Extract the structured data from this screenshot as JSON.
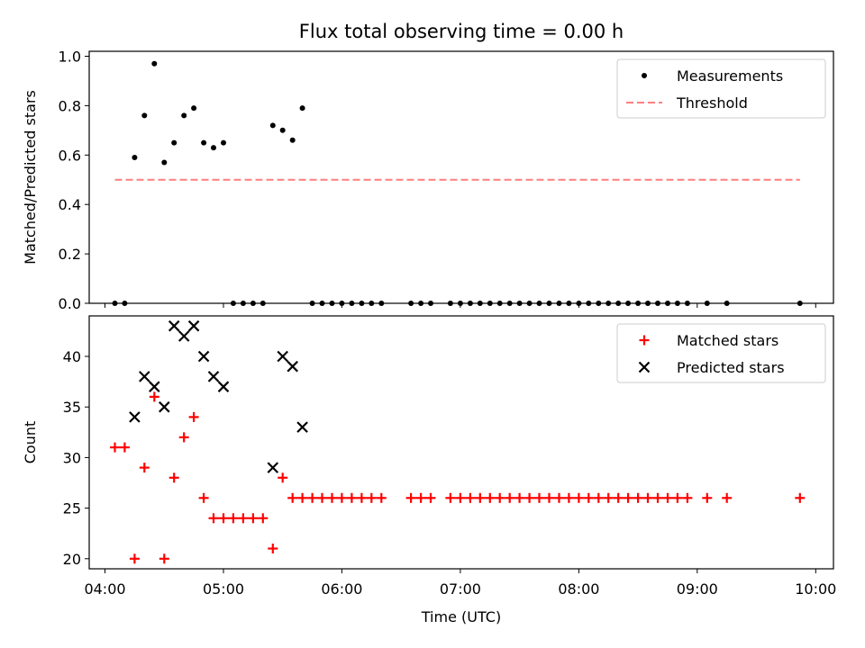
{
  "chart_data": [
    {
      "type": "scatter",
      "title": "Flux total observing time = 0.00 h",
      "xlabel": "",
      "ylabel": "Matched/Predicted stars",
      "xlim": [
        "03:52",
        "10:09"
      ],
      "ylim": [
        0.0,
        1.02
      ],
      "yticks": [
        0.0,
        0.2,
        0.4,
        0.6,
        0.8,
        1.0
      ],
      "ytick_labels": [
        "0.0",
        "0.2",
        "0.4",
        "0.6",
        "0.8",
        "1.0"
      ],
      "xticks": [
        "04:00",
        "05:00",
        "06:00",
        "07:00",
        "08:00",
        "09:00",
        "10:00"
      ],
      "legend": {
        "position": "top-right",
        "entries": [
          "Measurements",
          "Threshold"
        ]
      },
      "series": [
        {
          "name": "Measurements",
          "marker": "dot",
          "color": "#000000",
          "points": [
            [
              "04:05",
              0.0
            ],
            [
              "04:10",
              0.0
            ],
            [
              "04:15",
              0.59
            ],
            [
              "04:20",
              0.76
            ],
            [
              "04:25",
              0.97
            ],
            [
              "04:30",
              0.57
            ],
            [
              "04:35",
              0.65
            ],
            [
              "04:40",
              0.76
            ],
            [
              "04:45",
              0.79
            ],
            [
              "04:50",
              0.65
            ],
            [
              "04:55",
              0.63
            ],
            [
              "05:00",
              0.65
            ],
            [
              "05:05",
              0.0
            ],
            [
              "05:10",
              0.0
            ],
            [
              "05:15",
              0.0
            ],
            [
              "05:20",
              0.0
            ],
            [
              "05:25",
              0.72
            ],
            [
              "05:30",
              0.7
            ],
            [
              "05:35",
              0.66
            ],
            [
              "05:40",
              0.79
            ],
            [
              "05:45",
              0.0
            ],
            [
              "05:50",
              0.0
            ],
            [
              "05:55",
              0.0
            ],
            [
              "06:00",
              0.0
            ],
            [
              "06:05",
              0.0
            ],
            [
              "06:10",
              0.0
            ],
            [
              "06:15",
              0.0
            ],
            [
              "06:20",
              0.0
            ],
            [
              "06:35",
              0.0
            ],
            [
              "06:40",
              0.0
            ],
            [
              "06:45",
              0.0
            ],
            [
              "06:55",
              0.0
            ],
            [
              "07:00",
              0.0
            ],
            [
              "07:05",
              0.0
            ],
            [
              "07:10",
              0.0
            ],
            [
              "07:15",
              0.0
            ],
            [
              "07:20",
              0.0
            ],
            [
              "07:25",
              0.0
            ],
            [
              "07:30",
              0.0
            ],
            [
              "07:35",
              0.0
            ],
            [
              "07:40",
              0.0
            ],
            [
              "07:45",
              0.0
            ],
            [
              "07:50",
              0.0
            ],
            [
              "07:55",
              0.0
            ],
            [
              "08:00",
              0.0
            ],
            [
              "08:05",
              0.0
            ],
            [
              "08:10",
              0.0
            ],
            [
              "08:15",
              0.0
            ],
            [
              "08:20",
              0.0
            ],
            [
              "08:25",
              0.0
            ],
            [
              "08:30",
              0.0
            ],
            [
              "08:35",
              0.0
            ],
            [
              "08:40",
              0.0
            ],
            [
              "08:45",
              0.0
            ],
            [
              "08:50",
              0.0
            ],
            [
              "08:55",
              0.0
            ],
            [
              "09:05",
              0.0
            ],
            [
              "09:15",
              0.0
            ],
            [
              "09:52",
              0.0
            ]
          ]
        },
        {
          "name": "Threshold",
          "marker": "dashed-line",
          "color": "#ff7f7f",
          "points": [
            [
              "04:05",
              0.5
            ],
            [
              "09:52",
              0.5
            ]
          ]
        }
      ]
    },
    {
      "type": "scatter",
      "title": "",
      "xlabel": "Time (UTC)",
      "ylabel": "Count",
      "xlim": [
        "03:52",
        "10:09"
      ],
      "ylim": [
        19.0,
        44.0
      ],
      "yticks": [
        20,
        25,
        30,
        35,
        40
      ],
      "ytick_labels": [
        "20",
        "25",
        "30",
        "35",
        "40"
      ],
      "xticks": [
        "04:00",
        "05:00",
        "06:00",
        "07:00",
        "08:00",
        "09:00",
        "10:00"
      ],
      "xtick_labels": [
        "04:00",
        "05:00",
        "06:00",
        "07:00",
        "08:00",
        "09:00",
        "10:00"
      ],
      "legend": {
        "position": "top-right",
        "entries": [
          "Matched stars",
          "Predicted stars"
        ]
      },
      "series": [
        {
          "name": "Matched stars",
          "marker": "plus",
          "color": "#ff0000",
          "points": [
            [
              "04:05",
              31
            ],
            [
              "04:10",
              31
            ],
            [
              "04:15",
              20
            ],
            [
              "04:20",
              29
            ],
            [
              "04:25",
              36
            ],
            [
              "04:30",
              20
            ],
            [
              "04:35",
              28
            ],
            [
              "04:40",
              32
            ],
            [
              "04:45",
              34
            ],
            [
              "04:50",
              26
            ],
            [
              "04:55",
              24
            ],
            [
              "05:00",
              24
            ],
            [
              "05:05",
              24
            ],
            [
              "05:10",
              24
            ],
            [
              "05:15",
              24
            ],
            [
              "05:20",
              24
            ],
            [
              "05:25",
              21
            ],
            [
              "05:30",
              28
            ],
            [
              "05:35",
              26
            ],
            [
              "05:40",
              26
            ],
            [
              "05:45",
              26
            ],
            [
              "05:50",
              26
            ],
            [
              "05:55",
              26
            ],
            [
              "06:00",
              26
            ],
            [
              "06:05",
              26
            ],
            [
              "06:10",
              26
            ],
            [
              "06:15",
              26
            ],
            [
              "06:20",
              26
            ],
            [
              "06:35",
              26
            ],
            [
              "06:40",
              26
            ],
            [
              "06:45",
              26
            ],
            [
              "06:55",
              26
            ],
            [
              "07:00",
              26
            ],
            [
              "07:05",
              26
            ],
            [
              "07:10",
              26
            ],
            [
              "07:15",
              26
            ],
            [
              "07:20",
              26
            ],
            [
              "07:25",
              26
            ],
            [
              "07:30",
              26
            ],
            [
              "07:35",
              26
            ],
            [
              "07:40",
              26
            ],
            [
              "07:45",
              26
            ],
            [
              "07:50",
              26
            ],
            [
              "07:55",
              26
            ],
            [
              "08:00",
              26
            ],
            [
              "08:05",
              26
            ],
            [
              "08:10",
              26
            ],
            [
              "08:15",
              26
            ],
            [
              "08:20",
              26
            ],
            [
              "08:25",
              26
            ],
            [
              "08:30",
              26
            ],
            [
              "08:35",
              26
            ],
            [
              "08:40",
              26
            ],
            [
              "08:45",
              26
            ],
            [
              "08:50",
              26
            ],
            [
              "08:55",
              26
            ],
            [
              "09:05",
              26
            ],
            [
              "09:15",
              26
            ],
            [
              "09:52",
              26
            ]
          ]
        },
        {
          "name": "Predicted stars",
          "marker": "x",
          "color": "#000000",
          "points": [
            [
              "04:15",
              34
            ],
            [
              "04:20",
              38
            ],
            [
              "04:25",
              37
            ],
            [
              "04:30",
              35
            ],
            [
              "04:35",
              43
            ],
            [
              "04:40",
              42
            ],
            [
              "04:45",
              43
            ],
            [
              "04:50",
              40
            ],
            [
              "04:55",
              38
            ],
            [
              "05:00",
              37
            ],
            [
              "05:25",
              29
            ],
            [
              "05:30",
              40
            ],
            [
              "05:35",
              39
            ],
            [
              "05:40",
              33
            ]
          ]
        }
      ]
    }
  ]
}
